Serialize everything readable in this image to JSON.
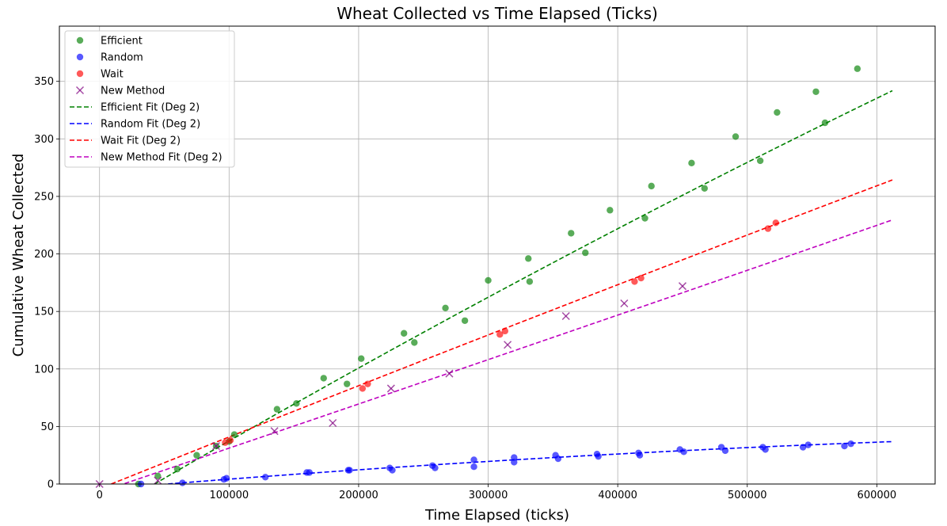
{
  "chart_data": {
    "type": "scatter",
    "title": "Wheat Collected vs Time Elapsed (Ticks)",
    "xlabel": "Time Elapsed (ticks)",
    "ylabel": "Cumulative Wheat Collected",
    "xlim": [
      -31000,
      645000
    ],
    "ylim": [
      0,
      398
    ],
    "x_ticks": [
      0,
      100000,
      200000,
      300000,
      400000,
      500000,
      600000
    ],
    "y_ticks": [
      0,
      50,
      100,
      150,
      200,
      250,
      300,
      350
    ],
    "grid": true,
    "legend_position": "top-left",
    "series": [
      {
        "name": "Efficient",
        "marker": "circle",
        "color": "#008000",
        "points": [
          [
            30000,
            0
          ],
          [
            45000,
            7
          ],
          [
            60000,
            13
          ],
          [
            75000,
            25
          ],
          [
            90000,
            33
          ],
          [
            100000,
            37
          ],
          [
            104000,
            43
          ],
          [
            137000,
            65
          ],
          [
            152000,
            70
          ],
          [
            173000,
            92
          ],
          [
            191000,
            87
          ],
          [
            202000,
            109
          ],
          [
            235000,
            131
          ],
          [
            243000,
            123
          ],
          [
            267000,
            153
          ],
          [
            282000,
            142
          ],
          [
            300000,
            177
          ],
          [
            331000,
            196
          ],
          [
            332000,
            176
          ],
          [
            364000,
            218
          ],
          [
            375000,
            201
          ],
          [
            394000,
            238
          ],
          [
            421000,
            231
          ],
          [
            426000,
            259
          ],
          [
            457000,
            279
          ],
          [
            467000,
            257
          ],
          [
            491000,
            302
          ],
          [
            510000,
            281
          ],
          [
            523000,
            323
          ],
          [
            553000,
            341
          ],
          [
            560000,
            314
          ],
          [
            585000,
            361
          ]
        ]
      },
      {
        "name": "Random",
        "marker": "circle",
        "color": "#0000ff",
        "points": [
          [
            32000,
            0
          ],
          [
            64000,
            1
          ],
          [
            96000,
            4
          ],
          [
            98000,
            5
          ],
          [
            128000,
            6
          ],
          [
            160000,
            10
          ],
          [
            162000,
            10
          ],
          [
            192000,
            12
          ],
          [
            193000,
            12
          ],
          [
            224000,
            14
          ],
          [
            226000,
            12
          ],
          [
            257000,
            16
          ],
          [
            259000,
            14
          ],
          [
            289000,
            21
          ],
          [
            289000,
            15
          ],
          [
            320000,
            23
          ],
          [
            320000,
            19
          ],
          [
            352000,
            25
          ],
          [
            354000,
            22
          ],
          [
            384000,
            26
          ],
          [
            385000,
            24
          ],
          [
            416000,
            27
          ],
          [
            417000,
            25
          ],
          [
            448000,
            30
          ],
          [
            451000,
            28
          ],
          [
            480000,
            32
          ],
          [
            483000,
            29
          ],
          [
            512000,
            32
          ],
          [
            514000,
            30
          ],
          [
            543000,
            32
          ],
          [
            547000,
            34
          ],
          [
            575000,
            33
          ],
          [
            580000,
            35
          ]
        ]
      },
      {
        "name": "Wait",
        "marker": "circle",
        "color": "#ff0000",
        "points": [
          [
            97000,
            36
          ],
          [
            101000,
            38
          ],
          [
            203000,
            83
          ],
          [
            207000,
            87
          ],
          [
            309000,
            130
          ],
          [
            313000,
            133
          ],
          [
            413000,
            176
          ],
          [
            418000,
            179
          ],
          [
            516000,
            222
          ],
          [
            522000,
            227
          ]
        ]
      },
      {
        "name": "New Method",
        "marker": "x",
        "color": "#800080",
        "points": [
          [
            0,
            0
          ],
          [
            45000,
            3
          ],
          [
            90000,
            33
          ],
          [
            135000,
            46
          ],
          [
            180000,
            53
          ],
          [
            225000,
            83
          ],
          [
            270000,
            96
          ],
          [
            315000,
            121
          ],
          [
            360000,
            146
          ],
          [
            405000,
            157
          ],
          [
            450000,
            172
          ]
        ]
      }
    ],
    "fits": [
      {
        "name": "Efficient Fit (Deg 2)",
        "color": "#008000",
        "x": [
          9000,
          612000
        ],
        "coeffs": [
          -27.93,
          0.000663,
          -9.6e-11
        ]
      },
      {
        "name": "Random Fit (Deg 2)",
        "color": "#0000ff",
        "x": [
          9000,
          612000
        ],
        "coeffs": [
          -4.8,
          9.44e-05,
          -4.3e-11
        ]
      },
      {
        "name": "Wait Fit (Deg 2)",
        "color": "#ff0000",
        "x": [
          9000,
          612000
        ],
        "coeffs": [
          -4.07,
          0.000452,
          -2.2e-11
        ]
      },
      {
        "name": "New Method Fit (Deg 2)",
        "color": "#bf00bf",
        "x": [
          9000,
          612000
        ],
        "coeffs": [
          -7.0,
          0.000381,
          9e-12
        ]
      }
    ]
  }
}
